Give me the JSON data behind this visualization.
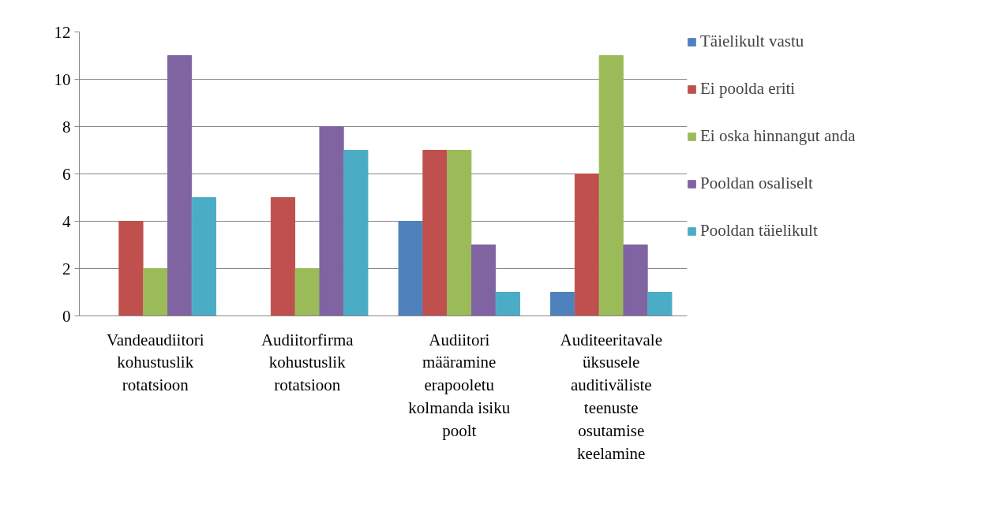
{
  "chart_data": {
    "type": "bar",
    "categories": [
      "Vandeaudiitori kohustuslik rotatsioon",
      "Audiitorfirma kohustuslik rotatsioon",
      "Audiitori määramine erapooletu kolmanda isiku poolt",
      "Auditeeritavale üksusele auditiväliste teenuste osutamise keelamine"
    ],
    "series": [
      {
        "name": "Täielikult vastu",
        "color": "#4f81bd",
        "values": [
          0,
          0,
          4,
          1
        ]
      },
      {
        "name": "Ei poolda eriti",
        "color": "#c0504d",
        "values": [
          4,
          5,
          7,
          6
        ]
      },
      {
        "name": "Ei oska hinnangut anda",
        "color": "#9bbb59",
        "values": [
          2,
          2,
          7,
          11
        ]
      },
      {
        "name": "Pooldan osaliselt",
        "color": "#8064a2",
        "values": [
          11,
          8,
          3,
          3
        ]
      },
      {
        "name": "Pooldan täielikult",
        "color": "#4bacc6",
        "values": [
          5,
          7,
          1,
          1
        ]
      }
    ],
    "ylim": [
      0,
      12
    ],
    "yticks": [
      0,
      2,
      4,
      6,
      8,
      10,
      12
    ],
    "grid": "y",
    "legend": "right"
  }
}
